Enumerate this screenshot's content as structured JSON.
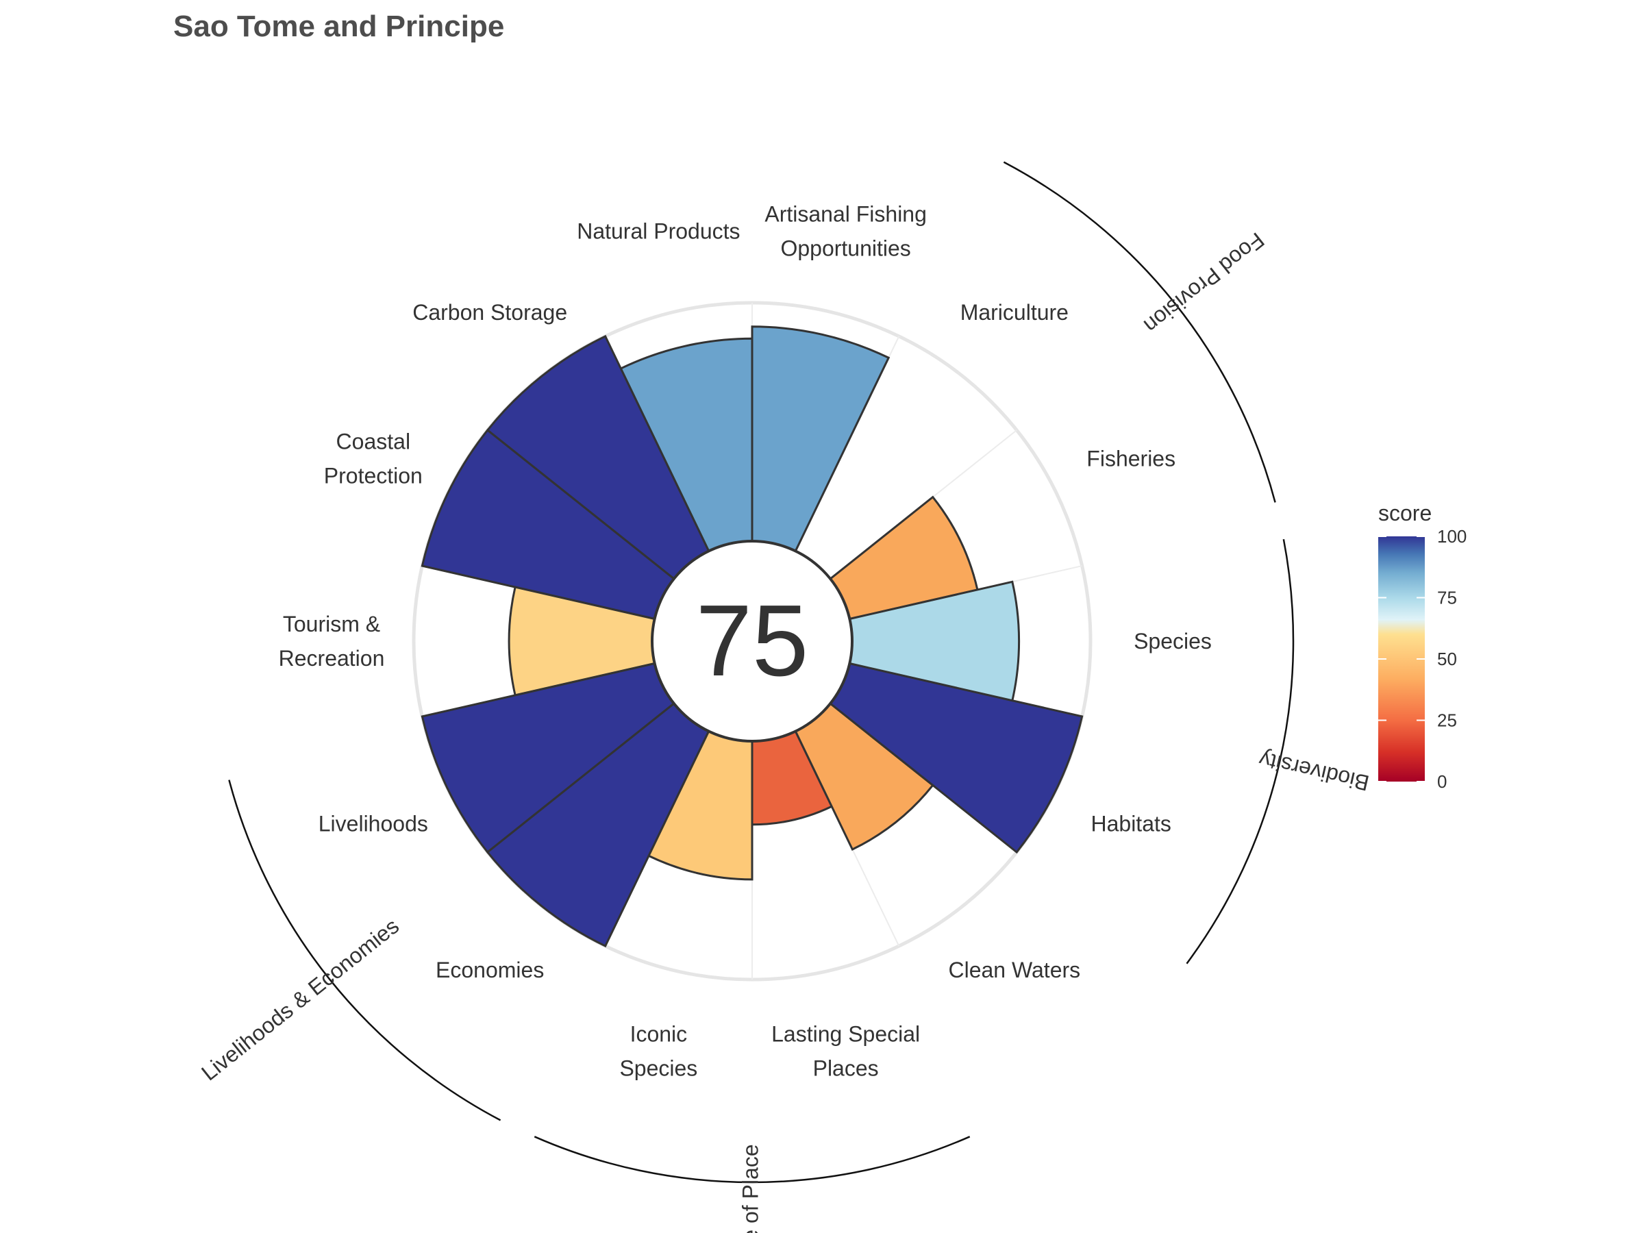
{
  "title": "Sao Tome and Principe",
  "center_score": "75",
  "chart_data": {
    "type": "polar-bar",
    "title": "Sao Tome and Principe",
    "overall_score": 75,
    "ylim": [
      0,
      100
    ],
    "grid": true,
    "categories": [
      "Fisheries",
      "Mariculture",
      "Artisanal Fishing Opportunities",
      "Natural Products",
      "Carbon Storage",
      "Coastal Protection",
      "Tourism & Recreation",
      "Livelihoods",
      "Economies",
      "Iconic Species",
      "Lasting Special Places",
      "Clean Waters",
      "Habitats",
      "Species"
    ],
    "category_labels": [
      [
        "Fisheries"
      ],
      [
        "Mariculture"
      ],
      [
        "Artisanal Fishing",
        "Opportunities"
      ],
      [
        "Natural Products"
      ],
      [
        "Carbon Storage"
      ],
      [
        "Coastal",
        "Protection"
      ],
      [
        "Tourism &",
        "Recreation"
      ],
      [
        "Livelihoods"
      ],
      [
        "Economies"
      ],
      [
        "Iconic",
        "Species"
      ],
      [
        "Lasting Special",
        "Places"
      ],
      [
        "Clean Waters"
      ],
      [
        "Habitats"
      ],
      [
        "Species"
      ]
    ],
    "values": [
      55,
      null,
      90,
      85,
      100,
      100,
      60,
      100,
      100,
      58,
      35,
      55,
      100,
      70
    ],
    "colors": [
      "#f9a85b",
      null,
      "#6ba3cc",
      "#6ba3cc",
      "#313695",
      "#313695",
      "#fdd385",
      "#313695",
      "#313695",
      "#fdc978",
      "#ea643e",
      "#f9a85b",
      "#313695",
      "#acd9e8"
    ],
    "groups": [
      {
        "name": "Food Provision",
        "members": [
          "Fisheries",
          "Mariculture"
        ]
      },
      {
        "name": "Biodiversity",
        "members": [
          "Species",
          "Habitats"
        ]
      },
      {
        "name": "Sense of Place",
        "members": [
          "Iconic Species",
          "Lasting Special Places"
        ]
      },
      {
        "name": "Livelihoods & Economies",
        "members": [
          "Livelihoods",
          "Economies"
        ]
      }
    ],
    "legend": {
      "title": "score",
      "ticks": [
        "100",
        "75",
        "50",
        "25",
        "0"
      ],
      "tick_values": [
        100,
        75,
        50,
        25,
        0
      ],
      "colorscale": [
        "#a50026",
        "#d73027",
        "#f46d43",
        "#fdae61",
        "#fee090",
        "#e0f3f8",
        "#abd9e9",
        "#74add1",
        "#4575b4",
        "#313695"
      ],
      "placement": "right"
    }
  }
}
